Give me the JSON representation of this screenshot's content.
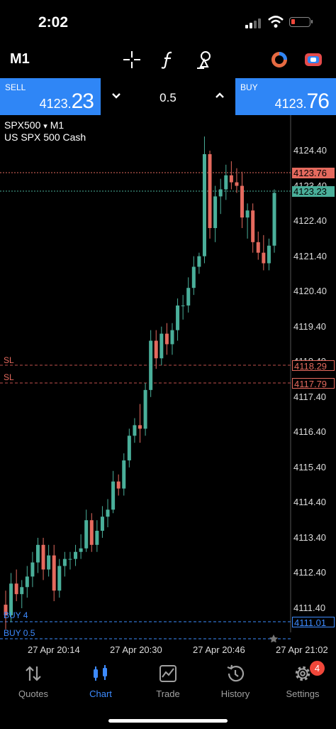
{
  "status_bar": {
    "time": "2:02"
  },
  "toolbar": {
    "timeframe": "M1",
    "icons": [
      "crosshair-icon",
      "function-icon",
      "objects-icon",
      "clock-icon",
      "switch-icon"
    ]
  },
  "trade_bar": {
    "sell": {
      "label": "SELL",
      "price_main": "4123.",
      "price_big": "23"
    },
    "buy": {
      "label": "BUY",
      "price_main": "4123.",
      "price_big": "76"
    },
    "volume": "0.5"
  },
  "chart": {
    "symbol": "SPX500",
    "symbol_arrow": "▾",
    "timeframe": "M1",
    "description": "US SPX 500 Cash",
    "ask_tag": "4123.76",
    "bid_tag": "4123.23",
    "sl_tag_1": "4118.29",
    "sl_tag_2": "4117.79",
    "buy_tag": "4111.01",
    "sl_label": "SL",
    "buy_label_1": "BUY 4",
    "buy_label_2": "BUY 0.5",
    "bull_color": "#4aaf9a",
    "bear_color": "#e56a5e",
    "grid_color": "#2a2a2a"
  },
  "chart_data": {
    "type": "candlestick",
    "y_ticks": [
      "4124.40",
      "4123.40",
      "4122.40",
      "4121.40",
      "4120.40",
      "4119.40",
      "4118.40",
      "4117.40",
      "4116.40",
      "4115.40",
      "4114.40",
      "4113.40",
      "4112.40",
      "4111.40"
    ],
    "x_ticks": [
      "27 Apr 20:14",
      "27 Apr 20:30",
      "27 Apr 20:46",
      "27 Apr 21:02"
    ],
    "ylim": [
      4110.6,
      4125.1
    ],
    "candles": [
      [
        4111.5,
        4111.9,
        4110.8,
        4111.2
      ],
      [
        4111.2,
        4112.4,
        4111.0,
        4112.1
      ],
      [
        4112.1,
        4112.5,
        4111.6,
        4111.8
      ],
      [
        4111.8,
        4112.2,
        4111.4,
        4112.0
      ],
      [
        4112.0,
        4112.6,
        4111.7,
        4112.3
      ],
      [
        4112.3,
        4113.0,
        4112.0,
        4112.7
      ],
      [
        4112.7,
        4113.4,
        4112.4,
        4113.2
      ],
      [
        4113.2,
        4113.4,
        4112.2,
        4112.5
      ],
      [
        4112.5,
        4113.2,
        4112.3,
        4112.9
      ],
      [
        4112.9,
        4113.2,
        4111.6,
        4111.9
      ],
      [
        4111.9,
        4112.8,
        4111.7,
        4112.6
      ],
      [
        4112.6,
        4113.0,
        4112.3,
        4112.8
      ],
      [
        4112.8,
        4113.0,
        4112.5,
        4112.8
      ],
      [
        4112.8,
        4113.2,
        4112.6,
        4113.0
      ],
      [
        4113.0,
        4113.5,
        4112.8,
        4113.1
      ],
      [
        4113.1,
        4114.2,
        4113.0,
        4113.9
      ],
      [
        4113.9,
        4114.1,
        4113.0,
        4113.2
      ],
      [
        4113.2,
        4113.9,
        4113.0,
        4113.6
      ],
      [
        4113.6,
        4114.3,
        4113.4,
        4114.0
      ],
      [
        4114.0,
        4114.5,
        4113.7,
        4114.2
      ],
      [
        4114.2,
        4115.3,
        4114.1,
        4115.0
      ],
      [
        4115.0,
        4115.2,
        4114.6,
        4114.8
      ],
      [
        4114.8,
        4115.8,
        4114.6,
        4115.6
      ],
      [
        4115.6,
        4116.5,
        4115.4,
        4116.3
      ],
      [
        4116.3,
        4116.8,
        4116.1,
        4116.6
      ],
      [
        4116.6,
        4117.2,
        4116.1,
        4116.5
      ],
      [
        4116.5,
        4117.8,
        4116.3,
        4117.6
      ],
      [
        4117.6,
        4119.3,
        4117.4,
        4119.0
      ],
      [
        4119.0,
        4119.3,
        4118.2,
        4118.5
      ],
      [
        4118.5,
        4119.4,
        4118.3,
        4119.2
      ],
      [
        4119.2,
        4119.5,
        4118.6,
        4118.9
      ],
      [
        4118.9,
        4119.5,
        4118.6,
        4119.3
      ],
      [
        4119.3,
        4120.2,
        4119.0,
        4120.0
      ],
      [
        4120.0,
        4120.3,
        4119.6,
        4120.0
      ],
      [
        4120.0,
        4120.8,
        4119.8,
        4120.5
      ],
      [
        4120.5,
        4121.4,
        4120.3,
        4121.1
      ],
      [
        4121.1,
        4121.5,
        4120.9,
        4121.4
      ],
      [
        4121.4,
        4124.8,
        4121.2,
        4124.3
      ],
      [
        4124.3,
        4124.4,
        4121.9,
        4122.2
      ],
      [
        4122.2,
        4123.4,
        4121.8,
        4123.1
      ],
      [
        4123.1,
        4123.6,
        4122.6,
        4123.3
      ],
      [
        4123.3,
        4124.0,
        4123.0,
        4123.7
      ],
      [
        4123.7,
        4124.1,
        4123.3,
        4123.5
      ],
      [
        4123.5,
        4123.9,
        4123.2,
        4123.4
      ],
      [
        4123.4,
        4123.8,
        4122.2,
        4122.5
      ],
      [
        4122.5,
        4122.9,
        4121.9,
        4122.7
      ],
      [
        4122.7,
        4122.9,
        4121.5,
        4121.8
      ],
      [
        4121.8,
        4122.1,
        4121.3,
        4121.5
      ],
      [
        4121.5,
        4122.0,
        4121.0,
        4121.2
      ],
      [
        4121.2,
        4121.9,
        4121.0,
        4121.7
      ],
      [
        4121.7,
        4123.3,
        4121.5,
        4123.2
      ]
    ]
  },
  "nav": {
    "items": [
      {
        "label": "Quotes",
        "icon": "quotes-icon"
      },
      {
        "label": "Chart",
        "icon": "chart-icon"
      },
      {
        "label": "Trade",
        "icon": "trade-icon"
      },
      {
        "label": "History",
        "icon": "history-icon"
      },
      {
        "label": "Settings",
        "icon": "settings-icon"
      }
    ],
    "settings_badge": "4",
    "active_color": "#3d8bff",
    "inactive_color": "#a0a0a0"
  }
}
